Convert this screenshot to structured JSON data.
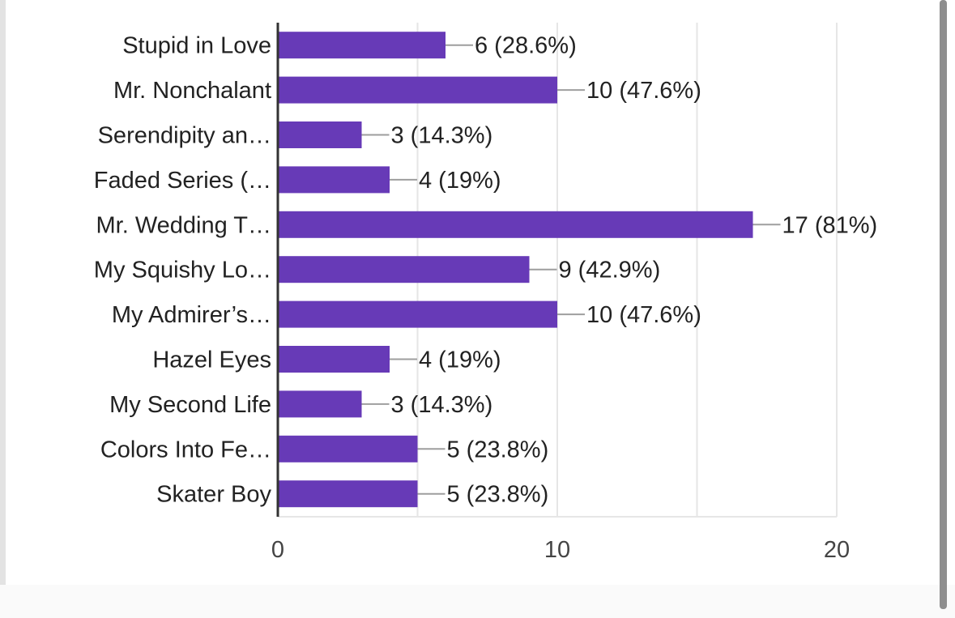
{
  "chart_data": {
    "type": "bar",
    "orientation": "horizontal",
    "categories": [
      "Stupid in Love",
      "Mr. Nonchalant",
      "Serendipity an…",
      "Faded Series (…",
      "Mr. Wedding T…",
      "My Squishy Lo…",
      "My Admirer’s…",
      "Hazel Eyes",
      "My Second Life",
      "Colors Into Fe…",
      "Skater Boy"
    ],
    "values": [
      6,
      10,
      3,
      4,
      17,
      9,
      10,
      4,
      3,
      5,
      5
    ],
    "data_labels": [
      "6 (28.6%)",
      "10 (47.6%)",
      "3 (14.3%)",
      "4 (19%)",
      "17 (81%)",
      "9 (42.9%)",
      "10 (47.6%)",
      "4 (19%)",
      "3 (14.3%)",
      "5 (23.8%)",
      "5 (23.8%)"
    ],
    "xlim": [
      0,
      20
    ],
    "xticks": [
      "0",
      "10",
      "20"
    ],
    "grid": true,
    "colors": {
      "bar": "#673ab7",
      "grid": "#e6e6e6",
      "axis": "#333333",
      "leader": "#9e9e9e",
      "text": "#222222"
    }
  }
}
